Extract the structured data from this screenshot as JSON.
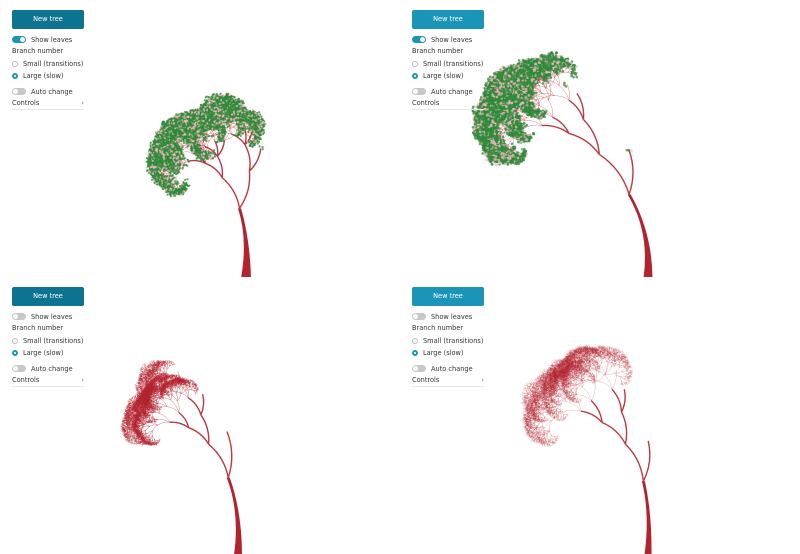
{
  "colors": {
    "branch": "#b3232e",
    "leaf": "#2e8b3a",
    "accent": "#1a95b8",
    "accent_dark": "#0e7390",
    "toggle_off": "#c8c8c8"
  },
  "panels": [
    {
      "new_tree_label": "New tree",
      "show_leaves_label": "Show leaves",
      "show_leaves_on": true,
      "branch_number_label": "Branch number",
      "options": [
        "Small (transitions)",
        "Large (slow)"
      ],
      "selected_option": "Large (slow)",
      "auto_change_label": "Auto change",
      "auto_change_on": false,
      "controls_label": "Controls",
      "controls_icon": "chevron-right-icon",
      "tree": {
        "show_leaves": true,
        "style": "sparse",
        "shape": "wide-spread"
      }
    },
    {
      "new_tree_label": "New tree",
      "show_leaves_label": "Show leaves",
      "show_leaves_on": true,
      "branch_number_label": "Branch number",
      "options": [
        "Small (transitions)",
        "Large (slow)"
      ],
      "selected_option": "Large (slow)",
      "auto_change_label": "Auto change",
      "auto_change_on": false,
      "controls_label": "Controls",
      "controls_icon": "chevron-right-icon",
      "tree": {
        "show_leaves": true,
        "style": "dense",
        "shape": "curl-left"
      }
    },
    {
      "new_tree_label": "New tree",
      "show_leaves_label": "Show leaves",
      "show_leaves_on": false,
      "branch_number_label": "Branch number",
      "options": [
        "Small (transitions)",
        "Large (slow)"
      ],
      "selected_option": "Large (slow)",
      "auto_change_label": "Auto change",
      "auto_change_on": false,
      "controls_label": "Controls",
      "controls_icon": "chevron-right-icon",
      "tree": {
        "show_leaves": false,
        "style": "dense",
        "shape": "curl-left-right"
      }
    },
    {
      "new_tree_label": "New tree",
      "show_leaves_label": "Show leaves",
      "show_leaves_on": false,
      "branch_number_label": "Branch number",
      "options": [
        "Small (transitions)",
        "Large (slow)"
      ],
      "selected_option": "Large (slow)",
      "auto_change_label": "Auto change",
      "auto_change_on": false,
      "controls_label": "Controls",
      "controls_icon": "chevron-right-icon",
      "tree": {
        "show_leaves": false,
        "style": "light",
        "shape": "wide-spread"
      }
    }
  ]
}
